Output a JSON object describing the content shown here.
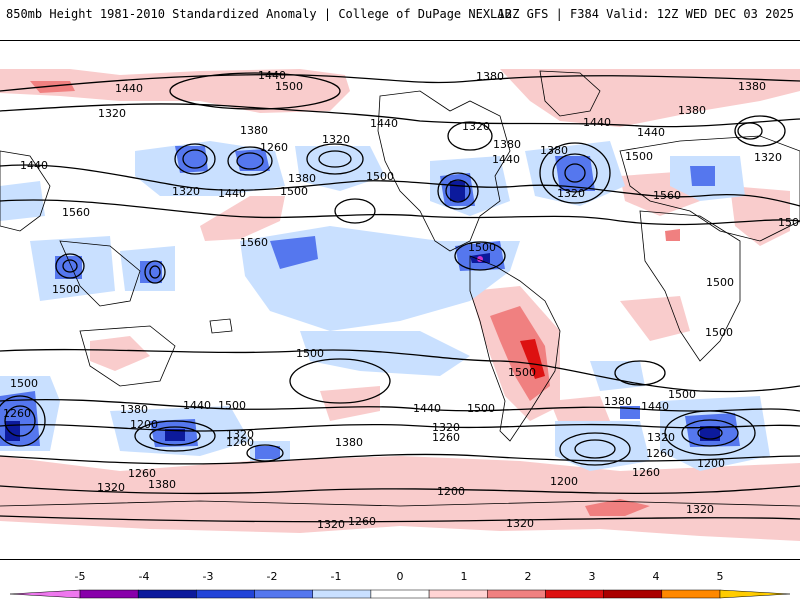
{
  "header": {
    "title": "850mb Height 1981-2010 Standardized Anomaly | College of DuPage NEXLAB",
    "run_info": "12Z GFS | F384 Valid: 12Z WED DEC 03 2025"
  },
  "contour_labels": {
    "l1440_n": "1440",
    "l1500_n": "1500",
    "l1380_n": "1380",
    "l1440_w": "1440",
    "l1320_a": "1320",
    "l1380_a": "1380",
    "l1320_b": "1320",
    "l1260_a": "1260",
    "l1380_b": "1380",
    "l1500_b": "1500",
    "l1440_b": "1440",
    "l1320_c": "1320",
    "l1560_a": "1560",
    "l1500_c": "1500",
    "l1440_c": "1440",
    "l1560_b": "1560",
    "l1500_d": "1500",
    "l1560_c": "1560",
    "l1500_e": "1500",
    "l1380_c": "1380",
    "l1440_d": "1440",
    "l1380_d": "1380",
    "l1500_f": "1500",
    "l1320_d": "1320",
    "l1440_e": "1440",
    "l1500_g": "1500",
    "l1320_e": "1320",
    "l1380_e": "1380",
    "l1440_f": "1440",
    "l1320_f": "1320",
    "l1560_d": "1560",
    "l1500_h": "1500",
    "l1500_i": "1500",
    "l1500_j": "1500",
    "l1500_k": "1500",
    "l1500_l": "1500",
    "l1500_m": "1500",
    "l1500_o": "1500",
    "l1380_f": "1380",
    "l1440_g": "1440",
    "l1500_p": "1500",
    "l1260_b": "1260",
    "l1200_a": "1200",
    "l1380_g": "1380",
    "l1320_g": "1320",
    "l1260_c": "1260",
    "l1380_h": "1380",
    "l1440_h": "1440",
    "l1320_h": "1320",
    "l1260_d": "1260",
    "l1380_i": "1380",
    "l1440_i": "1440",
    "l1320_i": "1320",
    "l1260_e": "1260",
    "l1200_b": "1200",
    "l1200_c": "1200",
    "l1320_j": "1320",
    "l1380_j": "1380",
    "l1260_f": "1260",
    "l1200_d": "1200",
    "l1320_k": "1320",
    "l1260_g": "1260",
    "l1320_l": "1320",
    "l1320_m": "1320",
    "l1500_q": "1500"
  },
  "colorbar": {
    "ticks": [
      "-5",
      "-4",
      "-3",
      "-2",
      "-1",
      "0",
      "1",
      "2",
      "3",
      "4",
      "5"
    ],
    "colors": [
      "#ee77ee",
      "#8800aa",
      "#0c1a9c",
      "#2244d8",
      "#5577ee",
      "#c9e0ff",
      "#ffffff",
      "#ffd4d4",
      "#f08080",
      "#dd1111",
      "#aa0000",
      "#ff8800",
      "#ffcc00"
    ]
  }
}
